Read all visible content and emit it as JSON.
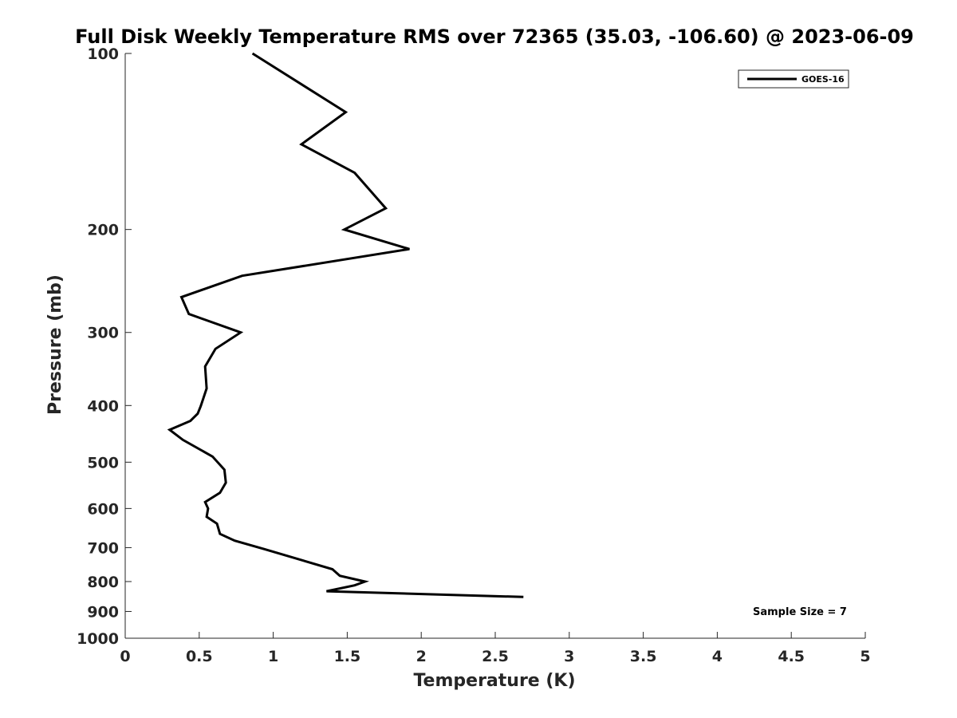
{
  "chart_data": {
    "type": "line",
    "title": "Full Disk Weekly Temperature RMS over 72365 (35.03, -106.60) @ 2023-06-09",
    "xlabel": "Temperature (K)",
    "ylabel": "Pressure (mb)",
    "xlim": [
      0,
      5
    ],
    "ylim": [
      100,
      1000
    ],
    "y_scale": "log",
    "y_reversed": true,
    "grid": false,
    "legend_position": "top-right",
    "x_ticks": [
      "0",
      "0.5",
      "1",
      "1.5",
      "2",
      "2.5",
      "3",
      "3.5",
      "4",
      "4.5",
      "5"
    ],
    "y_ticks": [
      "100",
      "200",
      "300",
      "400",
      "500",
      "600",
      "700",
      "800",
      "900",
      "1000"
    ],
    "annotation": "Sample Size = 7",
    "series": [
      {
        "name": "GOES-16",
        "color": "#000000",
        "points": [
          {
            "x": 0.86,
            "p": 100
          },
          {
            "x": 1.49,
            "p": 126
          },
          {
            "x": 1.19,
            "p": 143
          },
          {
            "x": 1.55,
            "p": 160
          },
          {
            "x": 1.76,
            "p": 184
          },
          {
            "x": 1.48,
            "p": 200
          },
          {
            "x": 1.92,
            "p": 216
          },
          {
            "x": 0.79,
            "p": 240
          },
          {
            "x": 0.38,
            "p": 261
          },
          {
            "x": 0.43,
            "p": 279
          },
          {
            "x": 0.78,
            "p": 300
          },
          {
            "x": 0.61,
            "p": 320
          },
          {
            "x": 0.54,
            "p": 343
          },
          {
            "x": 0.55,
            "p": 374
          },
          {
            "x": 0.51,
            "p": 401
          },
          {
            "x": 0.49,
            "p": 413
          },
          {
            "x": 0.44,
            "p": 425
          },
          {
            "x": 0.3,
            "p": 440
          },
          {
            "x": 0.39,
            "p": 458
          },
          {
            "x": 0.59,
            "p": 489
          },
          {
            "x": 0.67,
            "p": 515
          },
          {
            "x": 0.68,
            "p": 542
          },
          {
            "x": 0.64,
            "p": 564
          },
          {
            "x": 0.54,
            "p": 585
          },
          {
            "x": 0.56,
            "p": 600
          },
          {
            "x": 0.55,
            "p": 620
          },
          {
            "x": 0.62,
            "p": 637
          },
          {
            "x": 0.64,
            "p": 663
          },
          {
            "x": 0.74,
            "p": 681
          },
          {
            "x": 0.94,
            "p": 704
          },
          {
            "x": 1.4,
            "p": 762
          },
          {
            "x": 1.45,
            "p": 782
          },
          {
            "x": 1.62,
            "p": 800
          },
          {
            "x": 1.55,
            "p": 812
          },
          {
            "x": 1.36,
            "p": 831
          },
          {
            "x": 2.69,
            "p": 850
          }
        ]
      }
    ]
  }
}
